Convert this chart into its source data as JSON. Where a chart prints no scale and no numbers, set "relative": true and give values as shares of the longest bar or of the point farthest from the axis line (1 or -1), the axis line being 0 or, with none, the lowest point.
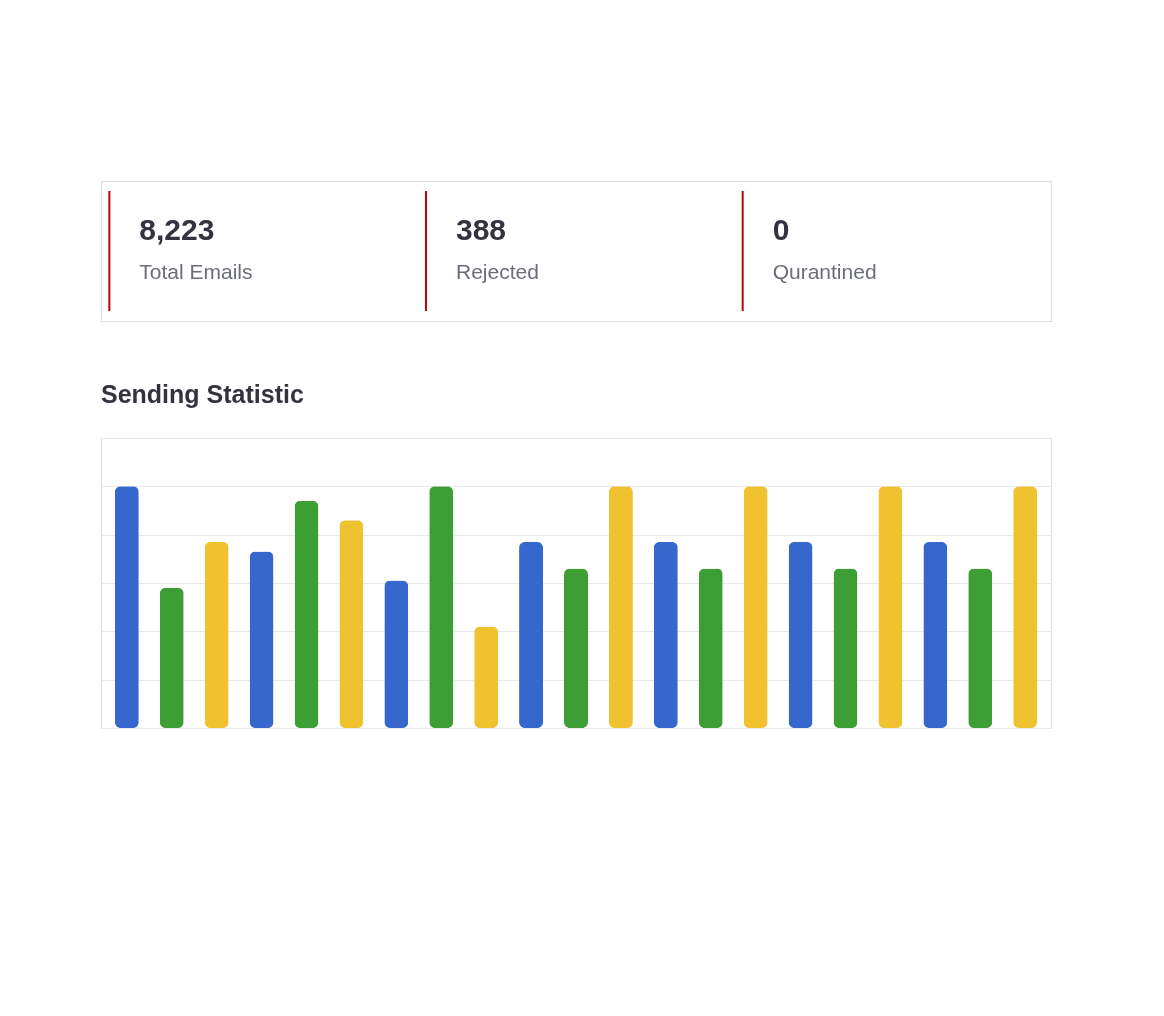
{
  "chart_data": [
    {
      "type": "other",
      "annotations": [
        "8,223",
        "Total Emails",
        "388",
        "Rejected",
        "0",
        "Qurantined"
      ]
    },
    {
      "type": "bar",
      "title": "Sending Statistic",
      "relative": true,
      "categories": [
        null,
        null,
        null,
        null,
        null,
        null,
        null,
        null,
        null,
        null,
        null,
        null,
        null,
        null,
        null,
        null,
        null,
        null,
        null,
        null,
        null
      ],
      "grid": "y",
      "values": [
        1,
        0.58,
        0.77,
        0.73,
        0.94,
        0.86,
        0.61,
        1,
        0.42,
        0.77,
        0.66,
        1,
        0.77,
        0.66,
        1,
        0.77,
        0.66,
        1,
        0.77,
        0.66,
        1
      ],
      "colors": [
        "#3667cc",
        "#3c9e35",
        "#f0c230",
        "#3667cc",
        "#3c9e35",
        "#f0c230",
        "#3667cc",
        "#3c9e35",
        "#f0c230",
        "#3667cc",
        "#3c9e35",
        "#f0c230",
        "#3667cc",
        "#3c9e35",
        "#f0c230",
        "#3667cc",
        "#3c9e35",
        "#f0c230",
        "#3667cc",
        "#3c9e35",
        "#f0c230"
      ]
    }
  ]
}
